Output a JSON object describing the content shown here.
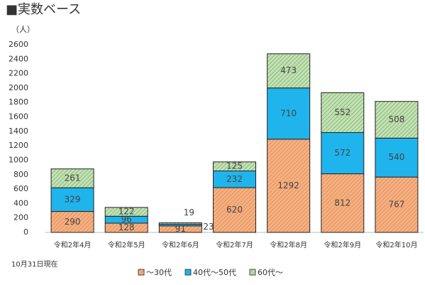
{
  "chart_data": {
    "type": "stacked_bar",
    "title": "■実数ベース",
    "y_unit": "（人）",
    "note": "10月31日現在",
    "categories": [
      "令和2年4月",
      "令和2年5月",
      "令和2年6月",
      "令和2年7月",
      "令和2年8月",
      "令和2年9月",
      "令和2年10月"
    ],
    "series": [
      {
        "name": "〜30代",
        "color": "#f4b183",
        "values": [
          290,
          128,
          91,
          620,
          1292,
          812,
          767
        ]
      },
      {
        "name": "40代〜50代",
        "color": "#1fb4ec",
        "values": [
          329,
          96,
          23,
          232,
          710,
          572,
          540
        ]
      },
      {
        "name": "60代〜",
        "color": "#a9d18e",
        "values": [
          261,
          122,
          19,
          125,
          473,
          552,
          508
        ]
      }
    ],
    "ylim": [
      0,
      2600
    ],
    "yticks": [
      0,
      200,
      400,
      600,
      800,
      1000,
      1200,
      1400,
      1600,
      1800,
      2000,
      2200,
      2400,
      2600
    ],
    "grid": false,
    "legend": "bottom"
  }
}
